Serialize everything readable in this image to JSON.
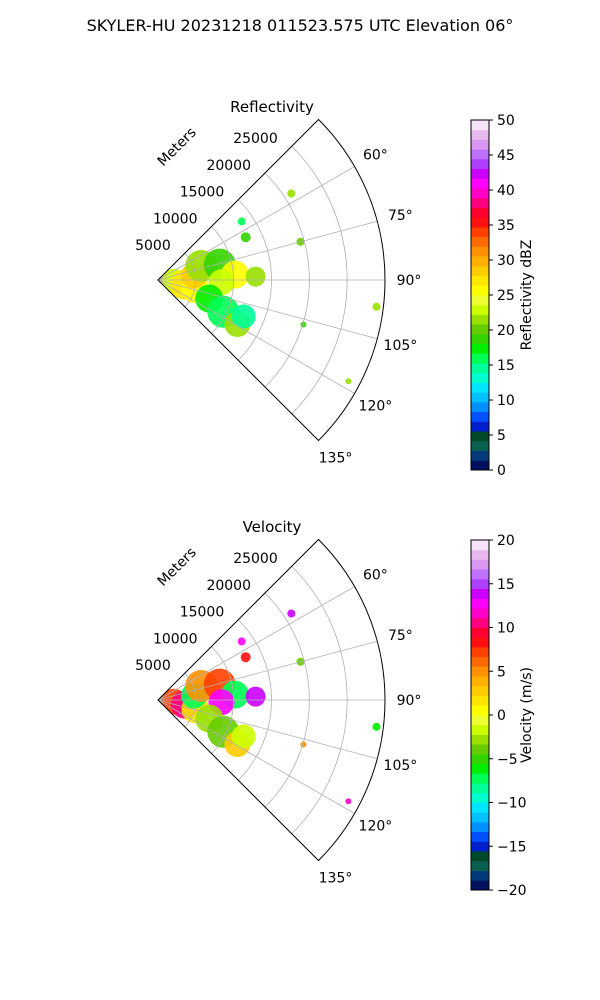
{
  "figure": {
    "title": "SKYLER-HU  20231218  011523.575 UTC Elevation 06°"
  },
  "chart_data": [
    {
      "type": "heatmap",
      "title": "Reflectivity",
      "radial_label": "Meters",
      "radial_ticks": [
        "5000",
        "10000",
        "15000",
        "20000",
        "25000"
      ],
      "radial_range": [
        0,
        30000
      ],
      "azimuth_ticks": [
        "60°",
        "75°",
        "90°",
        "105°",
        "120°",
        "135°"
      ],
      "azimuth_range_deg": [
        45,
        135
      ],
      "grid": true,
      "colorbar": {
        "label": "Reflectivity dBZ",
        "range": [
          0,
          50
        ],
        "ticks": [
          "0",
          "5",
          "10",
          "15",
          "20",
          "25",
          "30",
          "35",
          "40",
          "45",
          "50"
        ],
        "colors": [
          "#001060",
          "#003a78",
          "#0a6050",
          "#004a2a",
          "#0020d0",
          "#0050ff",
          "#0090ff",
          "#00c0ff",
          "#00e6ff",
          "#00ffcc",
          "#00ff99",
          "#00ff55",
          "#00ee00",
          "#33d400",
          "#66cc00",
          "#99e000",
          "#ccff00",
          "#eeff33",
          "#ffff00",
          "#ffe600",
          "#ffcc00",
          "#ffb000",
          "#ff9000",
          "#ff6a00",
          "#ff4000",
          "#ff1010",
          "#ff0030",
          "#ff0080",
          "#ff00c8",
          "#ff00ff",
          "#cc00ff",
          "#b040ff",
          "#c070ff",
          "#d898f0",
          "#e8b8f0",
          "#f8e4fa"
        ]
      }
    },
    {
      "type": "heatmap",
      "title": "Velocity",
      "radial_label": "Meters",
      "radial_ticks": [
        "5000",
        "10000",
        "15000",
        "20000",
        "25000"
      ],
      "radial_range": [
        0,
        30000
      ],
      "azimuth_ticks": [
        "60°",
        "75°",
        "90°",
        "105°",
        "120°",
        "135°"
      ],
      "azimuth_range_deg": [
        45,
        135
      ],
      "grid": true,
      "colorbar": {
        "label": "Velocity (m/s)",
        "range": [
          -20,
          20
        ],
        "ticks": [
          "−20",
          "−15",
          "−10",
          "−5",
          "0",
          "5",
          "10",
          "15",
          "20"
        ],
        "colors": [
          "#001060",
          "#003a78",
          "#0a6050",
          "#004a2a",
          "#0020d0",
          "#0050ff",
          "#0090ff",
          "#00c0ff",
          "#00e6ff",
          "#00ffcc",
          "#00ff99",
          "#00ff55",
          "#00ee00",
          "#33d400",
          "#66cc00",
          "#99e000",
          "#ccff00",
          "#eeff33",
          "#ffff00",
          "#ffe600",
          "#ffcc00",
          "#ffb000",
          "#ff9000",
          "#ff6a00",
          "#ff4000",
          "#ff1010",
          "#ff0030",
          "#ff0080",
          "#ff00c8",
          "#ff00ff",
          "#cc00ff",
          "#b040ff",
          "#c070ff",
          "#d898f0",
          "#e8b8f0",
          "#f8e4fa"
        ]
      }
    }
  ]
}
